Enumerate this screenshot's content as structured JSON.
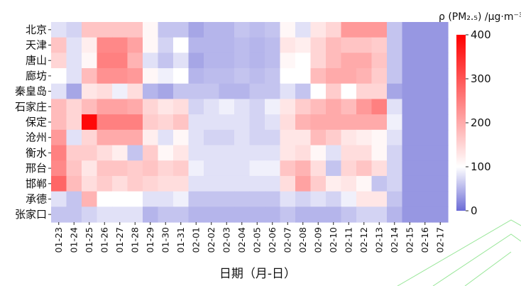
{
  "chart_data": {
    "type": "heatmap",
    "colorbar_title": "ρ (PM₂.₅) /μg·m⁻³",
    "xlabel": "日期（月-日）",
    "colorbar": {
      "min": 0,
      "max": 400,
      "mid": 100,
      "ticks": [
        0,
        100,
        200,
        300,
        400
      ]
    },
    "colors": {
      "low": "#6b6bd6",
      "mid": "#ffffff",
      "high": "#ff0000"
    },
    "rows": [
      "北京",
      "天津",
      "唐山",
      "廊坊",
      "秦皇岛",
      "石家庄",
      "保定",
      "沧州",
      "衡水",
      "邢台",
      "邯郸",
      "承德",
      "张家口"
    ],
    "columns": [
      "01-23",
      "01-24",
      "01-25",
      "01-26",
      "01-27",
      "01-28",
      "01-29",
      "01-30",
      "01-31",
      "02-01",
      "02-02",
      "02-03",
      "02-04",
      "02-05",
      "02-06",
      "02-07",
      "02-08",
      "02-09",
      "02-10",
      "02-11",
      "02-12",
      "02-13",
      "02-14",
      "02-15",
      "02-16",
      "02-17"
    ],
    "values": [
      [
        80,
        70,
        170,
        170,
        170,
        170,
        110,
        60,
        60,
        40,
        50,
        50,
        60,
        55,
        60,
        110,
        80,
        130,
        150,
        220,
        220,
        220,
        60,
        30,
        30,
        30
      ],
      [
        170,
        80,
        120,
        240,
        240,
        210,
        110,
        70,
        100,
        50,
        50,
        50,
        55,
        50,
        55,
        130,
        120,
        150,
        180,
        170,
        170,
        160,
        60,
        30,
        30,
        30
      ],
      [
        150,
        80,
        110,
        250,
        250,
        190,
        80,
        60,
        80,
        40,
        50,
        50,
        55,
        50,
        55,
        110,
        100,
        150,
        180,
        200,
        200,
        170,
        60,
        30,
        30,
        30
      ],
      [
        100,
        80,
        180,
        230,
        230,
        220,
        110,
        90,
        100,
        50,
        55,
        55,
        60,
        55,
        60,
        100,
        100,
        180,
        200,
        200,
        190,
        160,
        60,
        30,
        30,
        30
      ],
      [
        80,
        40,
        130,
        140,
        90,
        140,
        50,
        40,
        60,
        60,
        60,
        50,
        50,
        60,
        60,
        80,
        60,
        100,
        160,
        100,
        150,
        150,
        40,
        30,
        30,
        30
      ],
      [
        180,
        150,
        180,
        210,
        210,
        200,
        150,
        130,
        140,
        70,
        80,
        90,
        80,
        70,
        90,
        130,
        160,
        180,
        200,
        180,
        220,
        250,
        80,
        30,
        30,
        30
      ],
      [
        180,
        150,
        390,
        250,
        250,
        250,
        160,
        150,
        170,
        80,
        80,
        80,
        80,
        70,
        80,
        140,
        190,
        200,
        200,
        200,
        200,
        200,
        90,
        30,
        30,
        30
      ],
      [
        220,
        80,
        150,
        200,
        200,
        200,
        120,
        80,
        110,
        80,
        70,
        70,
        80,
        70,
        70,
        130,
        130,
        180,
        160,
        130,
        120,
        110,
        80,
        30,
        30,
        30
      ],
      [
        250,
        160,
        160,
        140,
        120,
        60,
        160,
        110,
        130,
        80,
        80,
        80,
        80,
        80,
        80,
        130,
        140,
        110,
        80,
        140,
        140,
        110,
        70,
        30,
        30,
        30
      ],
      [
        240,
        170,
        130,
        170,
        170,
        160,
        170,
        150,
        160,
        90,
        80,
        80,
        80,
        90,
        90,
        170,
        190,
        140,
        60,
        150,
        170,
        140,
        70,
        30,
        30,
        30
      ],
      [
        280,
        180,
        140,
        160,
        140,
        160,
        150,
        140,
        140,
        80,
        80,
        80,
        80,
        80,
        80,
        140,
        210,
        160,
        120,
        130,
        110,
        60,
        70,
        30,
        30,
        30
      ],
      [
        80,
        60,
        190,
        100,
        100,
        100,
        80,
        80,
        90,
        60,
        60,
        60,
        60,
        60,
        60,
        80,
        70,
        80,
        70,
        90,
        130,
        130,
        60,
        30,
        30,
        30
      ],
      [
        60,
        60,
        70,
        80,
        80,
        80,
        50,
        60,
        60,
        50,
        50,
        50,
        50,
        50,
        50,
        60,
        50,
        50,
        50,
        60,
        70,
        70,
        50,
        30,
        30,
        30
      ]
    ]
  }
}
